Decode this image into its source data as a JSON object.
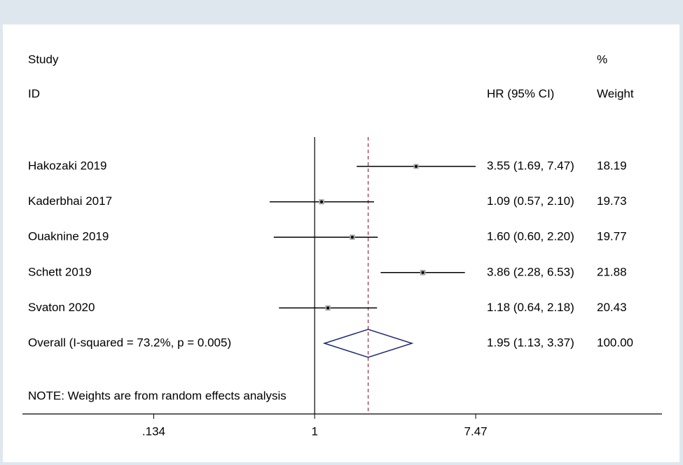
{
  "chart_data": {
    "type": "forest",
    "headers": {
      "study": "Study",
      "id": "ID",
      "effect": "HR (95% CI)",
      "weight_top": "%",
      "weight": "Weight"
    },
    "categories": [
      "Hakozaki 2019",
      "Kaderbhai 2017",
      "Ouaknine 2019",
      "Schett 2019",
      "Svaton 2020"
    ],
    "values": [
      3.55,
      1.09,
      1.6,
      3.86,
      1.18
    ],
    "lower": [
      1.69,
      0.57,
      0.6,
      2.28,
      0.64
    ],
    "upper": [
      7.47,
      2.1,
      2.2,
      6.53,
      2.18
    ],
    "value_labels": [
      "3.55 (1.69, 7.47)",
      "1.09 (0.57, 2.10)",
      "1.60 (0.60, 2.20)",
      "3.86 (2.28, 6.53)",
      "1.18 (0.64, 2.18)"
    ],
    "weights": [
      18.19,
      19.73,
      19.77,
      21.88,
      20.43
    ],
    "overall": {
      "label": "Overall  (I-squared = 73.2%, p = 0.005)",
      "value": 1.95,
      "lower": 1.13,
      "upper": 3.37,
      "value_label": "1.95 (1.13, 3.37)",
      "weight": 100,
      "weight_label": "100.00"
    },
    "note": "NOTE: Weights are from random effects analysis",
    "log_scale": true,
    "null_line": 1,
    "xlim": [
      0.026,
      76.5
    ],
    "xticks": [
      {
        "value": 0.134,
        "label": ".134"
      },
      1,
      7.47
    ],
    "colors": {
      "ci": "#000000",
      "box": "#a6a6a6",
      "diamond": "#1f2a78",
      "overall_line": "#9b2c3c"
    }
  }
}
